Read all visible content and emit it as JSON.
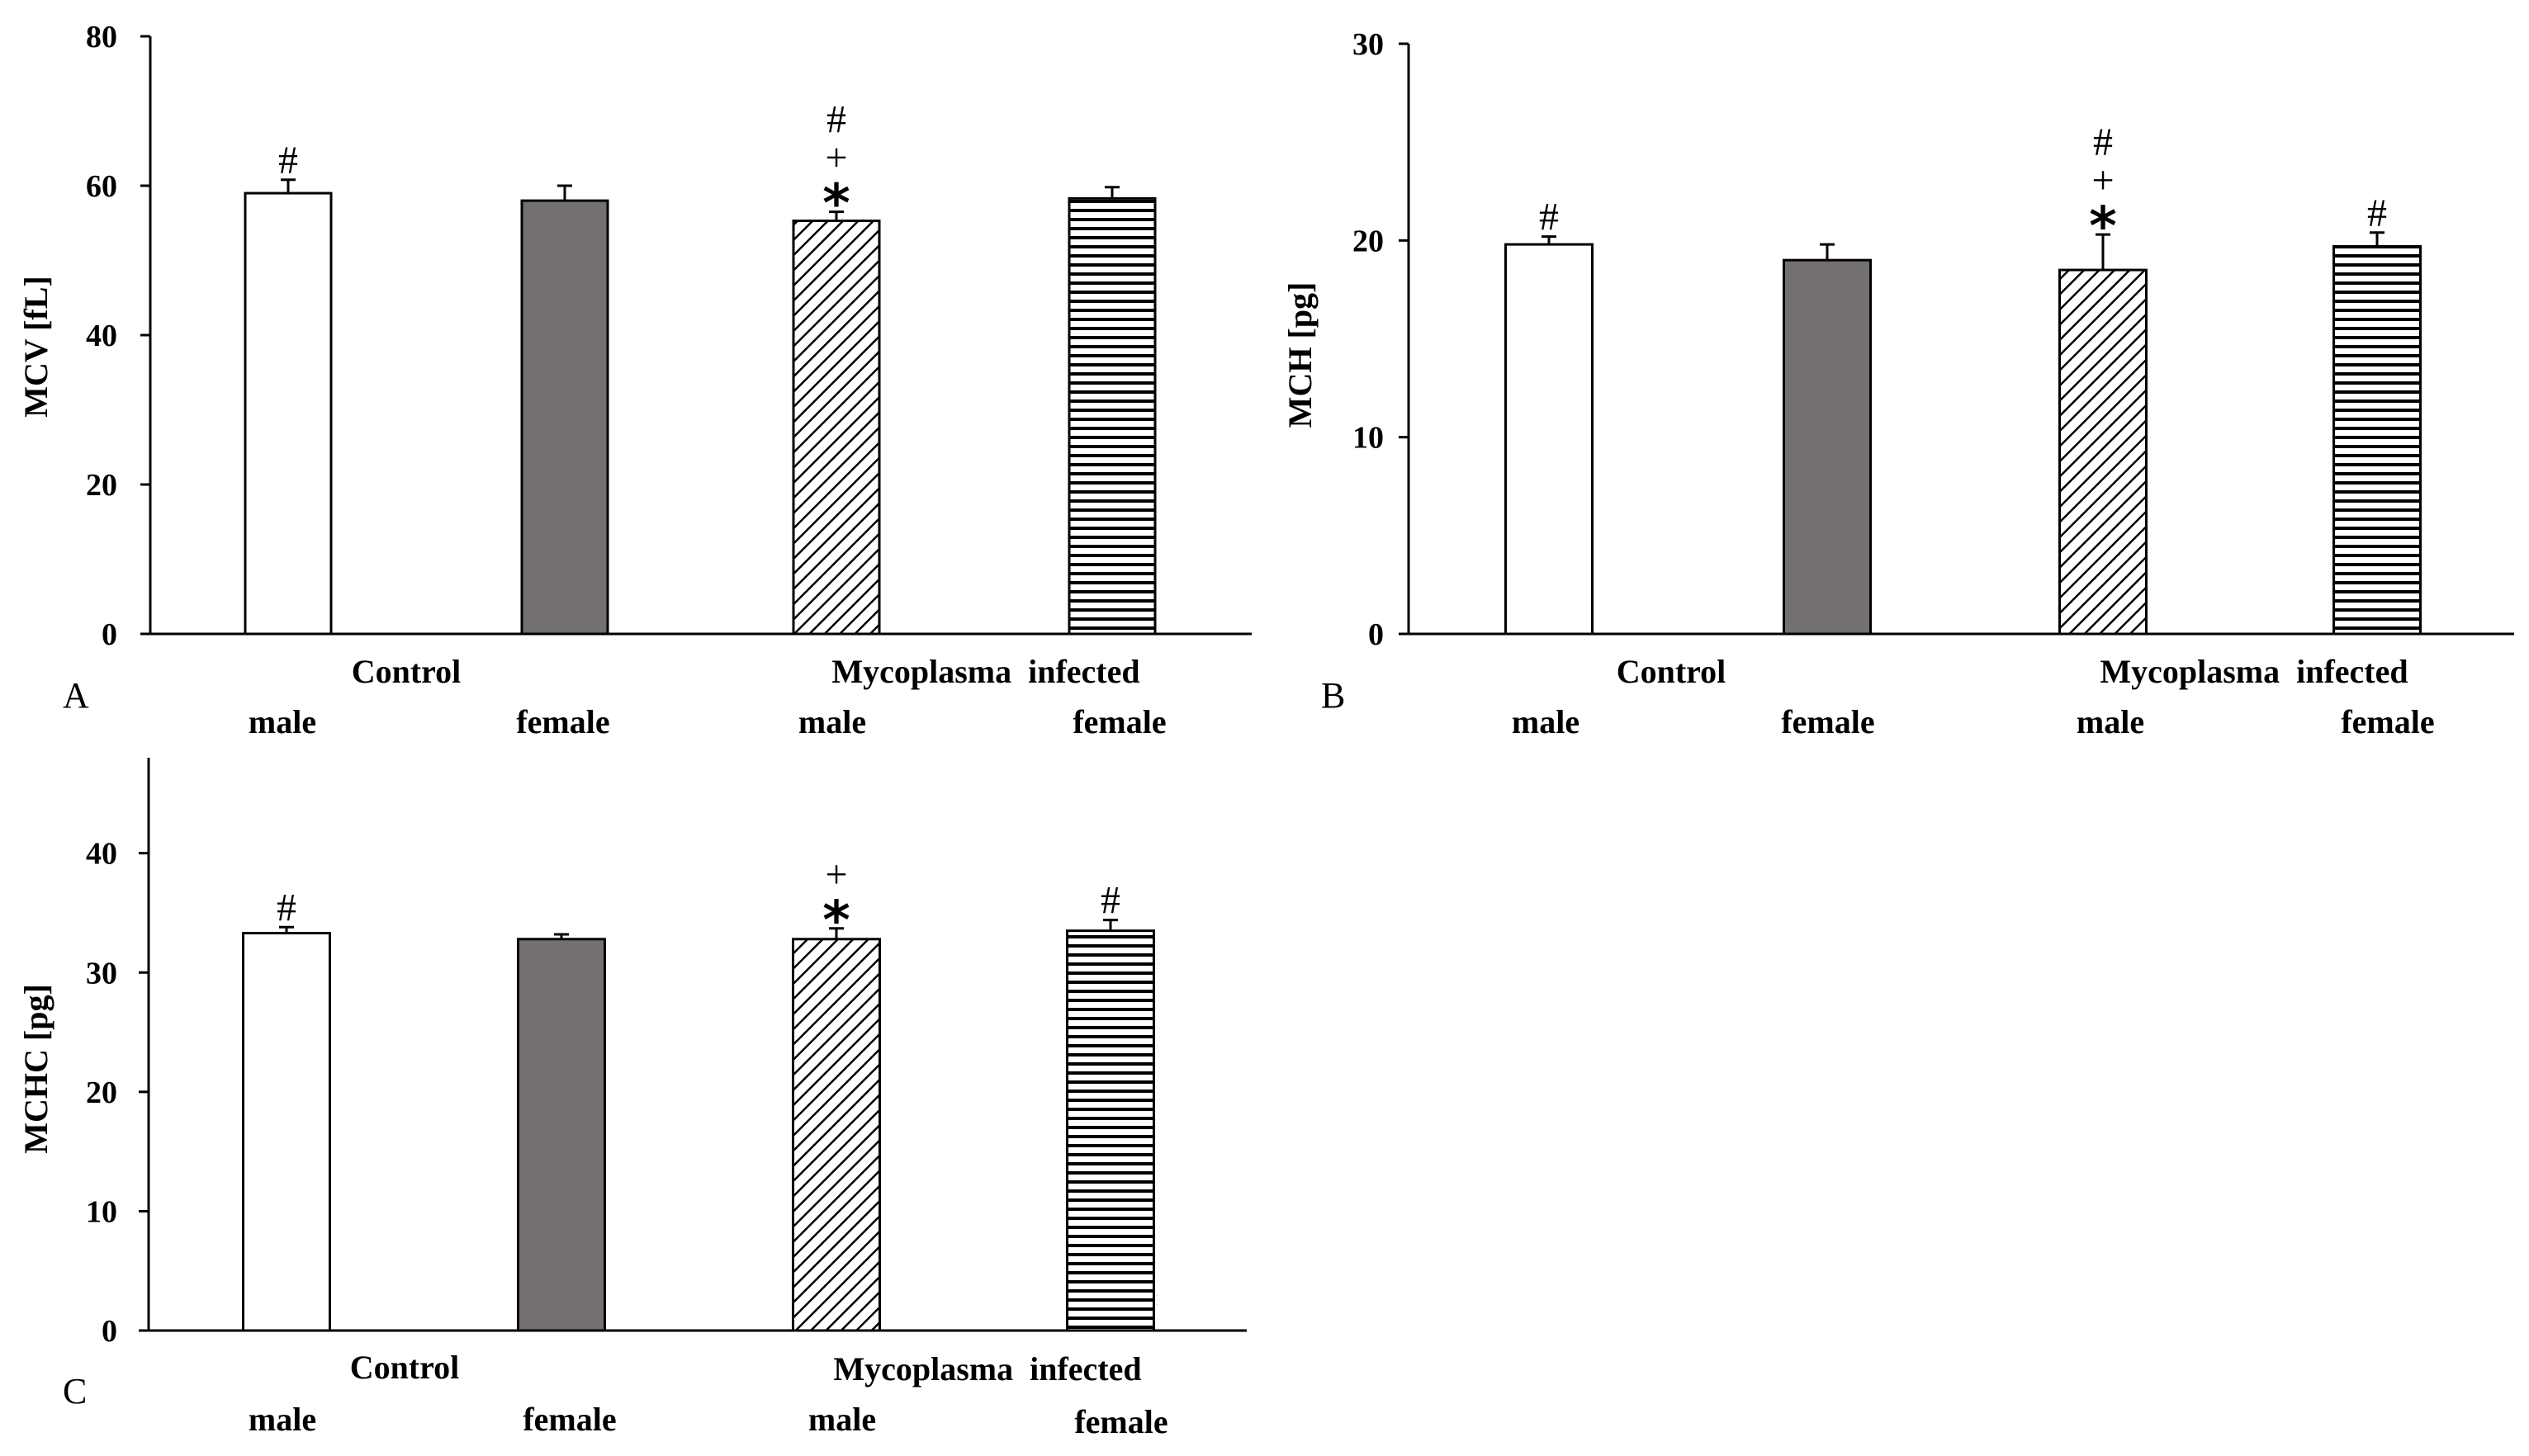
{
  "chart_data": [
    {
      "type": "bar",
      "panel": "A",
      "ylabel": "MCV [fL]",
      "ylim": [
        0,
        80
      ],
      "yticks": [
        0,
        20,
        40,
        60,
        80
      ],
      "group_labels": [
        "Control",
        "Mycoplasma  infected"
      ],
      "categories": [
        "male",
        "female",
        "male",
        "female"
      ],
      "values": [
        59,
        58,
        55.3,
        58.3
      ],
      "errors": [
        1.8,
        2.0,
        1.2,
        1.5
      ],
      "fills": [
        "white",
        "gray",
        "diagonal",
        "horizontal"
      ],
      "annotations": [
        [
          "#"
        ],
        [],
        [
          "#",
          "+",
          "*"
        ],
        []
      ]
    },
    {
      "type": "bar",
      "panel": "B",
      "ylabel": "MCH [pg]",
      "ylim": [
        0,
        30
      ],
      "yticks": [
        0,
        10,
        20,
        30
      ],
      "group_labels": [
        "Control",
        "Mycoplasma  infected"
      ],
      "categories": [
        "male",
        "female",
        "male",
        "female"
      ],
      "values": [
        19.8,
        19.0,
        18.5,
        19.7
      ],
      "errors": [
        0.4,
        0.8,
        1.8,
        0.7
      ],
      "fills": [
        "white",
        "gray",
        "diagonal",
        "horizontal"
      ],
      "annotations": [
        [
          "#"
        ],
        [],
        [
          "#",
          "+",
          "*"
        ],
        [
          "#"
        ]
      ]
    },
    {
      "type": "bar",
      "panel": "C",
      "ylabel": "MCHC [pg]",
      "ylim": [
        0,
        48
      ],
      "yticks": [
        0,
        10,
        20,
        30,
        40
      ],
      "group_labels": [
        "Control",
        "Mycoplasma  infected"
      ],
      "categories": [
        "male",
        "female",
        "male",
        "female"
      ],
      "values": [
        33.3,
        32.8,
        32.8,
        33.5
      ],
      "errors": [
        0.5,
        0.4,
        0.9,
        0.9
      ],
      "fills": [
        "white",
        "gray",
        "diagonal",
        "horizontal"
      ],
      "annotations": [
        [
          "#"
        ],
        [],
        [
          "+",
          "*"
        ],
        [
          "#"
        ]
      ]
    }
  ],
  "colors": {
    "gray_bar": "#747070",
    "stroke": "#000000"
  }
}
